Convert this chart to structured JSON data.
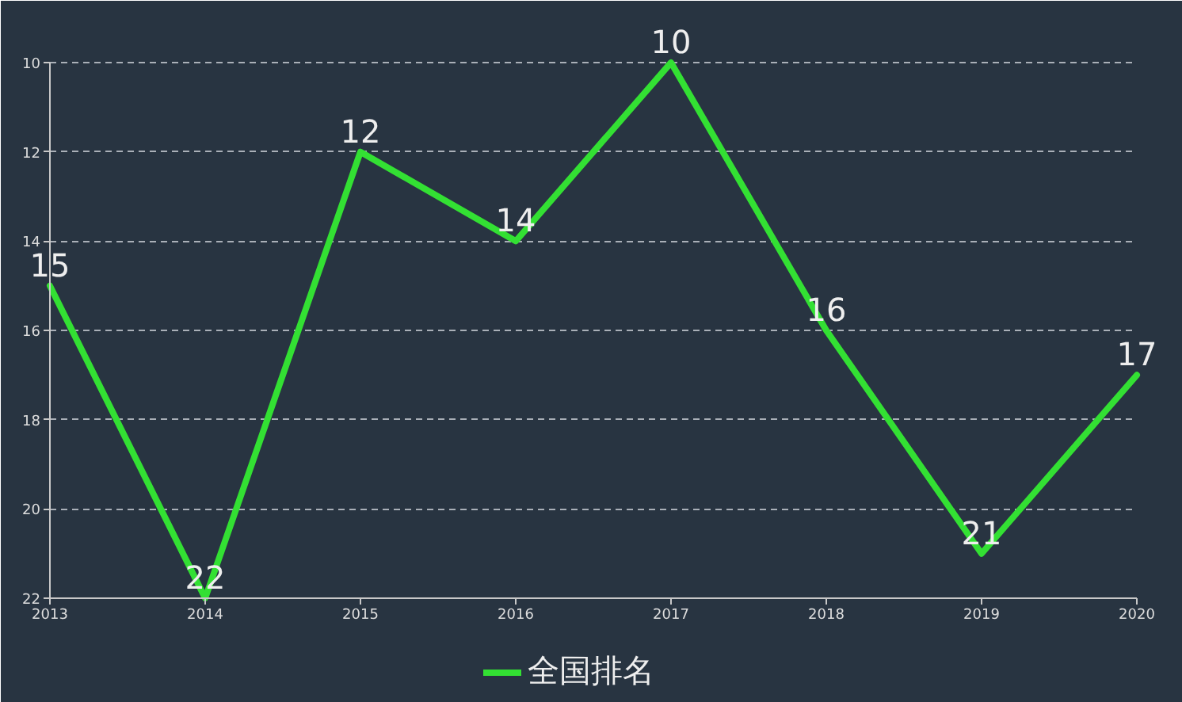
{
  "chart_data": {
    "type": "line",
    "categories": [
      "2013",
      "2014",
      "2015",
      "2016",
      "2017",
      "2018",
      "2019",
      "2020"
    ],
    "series": [
      {
        "name": "全国排名",
        "color": "#33e033",
        "values": [
          15,
          22,
          12,
          14,
          10,
          16,
          21,
          17
        ]
      }
    ],
    "ylim": [
      22,
      10
    ],
    "yticks": [
      10,
      12,
      14,
      16,
      18,
      20,
      22
    ],
    "grid": "y",
    "legend": "bottom",
    "marker": "none",
    "line_style": "solid",
    "data_labels": true
  }
}
